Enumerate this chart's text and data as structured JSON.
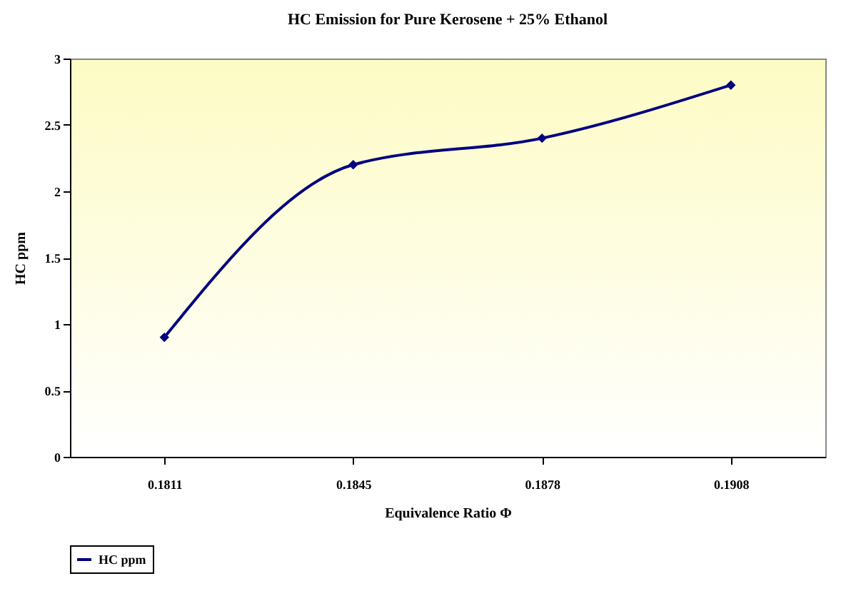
{
  "chart_data": {
    "type": "line",
    "title": "HC  Emission for Pure Kerosene + 25% Ethanol",
    "xlabel": "Equivalence Ratio Φ",
    "ylabel": "HC ppm",
    "categories": [
      "0.1811",
      "0.1845",
      "0.1878",
      "0.1908"
    ],
    "series": [
      {
        "name": "HC ppm",
        "color": "#000080",
        "values": [
          0.9,
          2.2,
          2.4,
          2.8
        ]
      }
    ],
    "ylim": [
      0,
      3
    ],
    "yticks": [
      {
        "value": 0,
        "label": "0"
      },
      0.5,
      {
        "value": 1,
        "label": "1"
      },
      1.5,
      {
        "value": 2,
        "label": "2"
      },
      2.5,
      {
        "value": 3,
        "label": "3"
      }
    ],
    "grid": false,
    "legend": "bottom",
    "marker": "diamond",
    "line_style": "solid"
  }
}
